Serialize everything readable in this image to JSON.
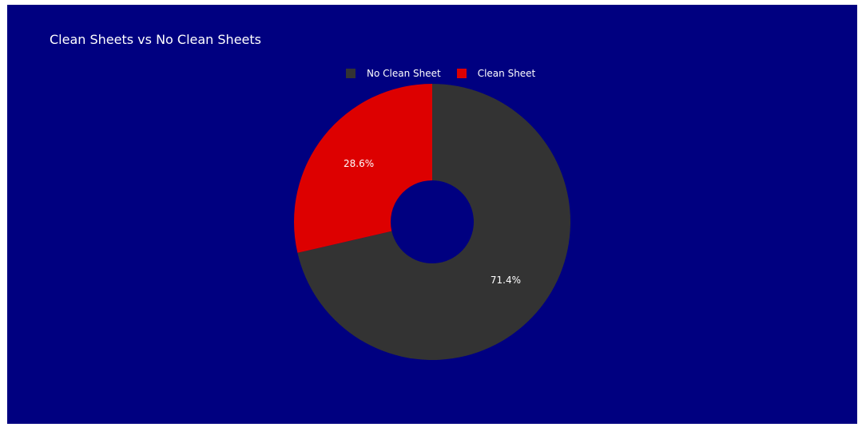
{
  "chart_data": {
    "type": "pie",
    "title": "Clean Sheets vs No Clean Sheets",
    "hole": true,
    "legend_placement": "top-center",
    "categories": [
      "No Clean Sheet",
      "Clean Sheet"
    ],
    "values": [
      71.4,
      28.6
    ],
    "labels": [
      "71.4%",
      "28.6%"
    ],
    "colors": [
      "#333333",
      "#dd0000"
    ],
    "background": "#000080"
  }
}
